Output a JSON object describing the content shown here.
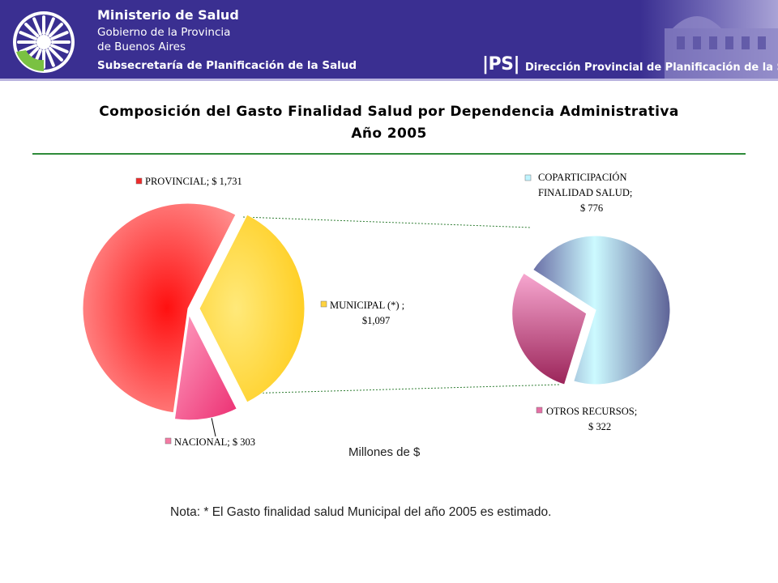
{
  "header": {
    "ministry": "Ministerio de Salud",
    "government_line1": "Gobierno de la Provincia",
    "government_line2": "de Buenos Aires",
    "subsecretariat": "Subsecretaría de Planificación de la Salud",
    "ips_logo": "|PS|",
    "direction": "Dirección Provincial de Planificación de la Salud",
    "colors": {
      "band": "#3a2f91",
      "logo_green": "#7ac142"
    }
  },
  "title": {
    "line1": "Composición del Gasto Finalidad Salud por Dependencia Administrativa",
    "line2": "Año 2005"
  },
  "chart_data": [
    {
      "type": "pie",
      "chart": "main",
      "slices": [
        {
          "label": "PROVINCIAL; $ 1,731",
          "value": 1731,
          "color": "#ee2a2a"
        },
        {
          "label_lines": [
            "MUNICIPAL (*) ;",
            "$1,097"
          ],
          "value": 1097,
          "color": "#ffd23f"
        },
        {
          "label": "NACIONAL; $ 303",
          "value": 303,
          "color": "#f47aa3"
        }
      ]
    },
    {
      "type": "pie",
      "chart": "breakdown of MUNICIPAL",
      "slices": [
        {
          "label_lines": [
            "COPARTICIPACIÓN",
            "FINALIDAD SALUD;",
            "$ 776"
          ],
          "value": 776,
          "color": "#bff4ff"
        },
        {
          "label_lines": [
            "OTROS RECURSOS;",
            "$ 322"
          ],
          "value": 322,
          "color": "#e56fa5"
        }
      ]
    }
  ],
  "unit_label": "Millones de $",
  "note": "Nota: * El Gasto finalidad salud Municipal del año 2005 es estimado."
}
